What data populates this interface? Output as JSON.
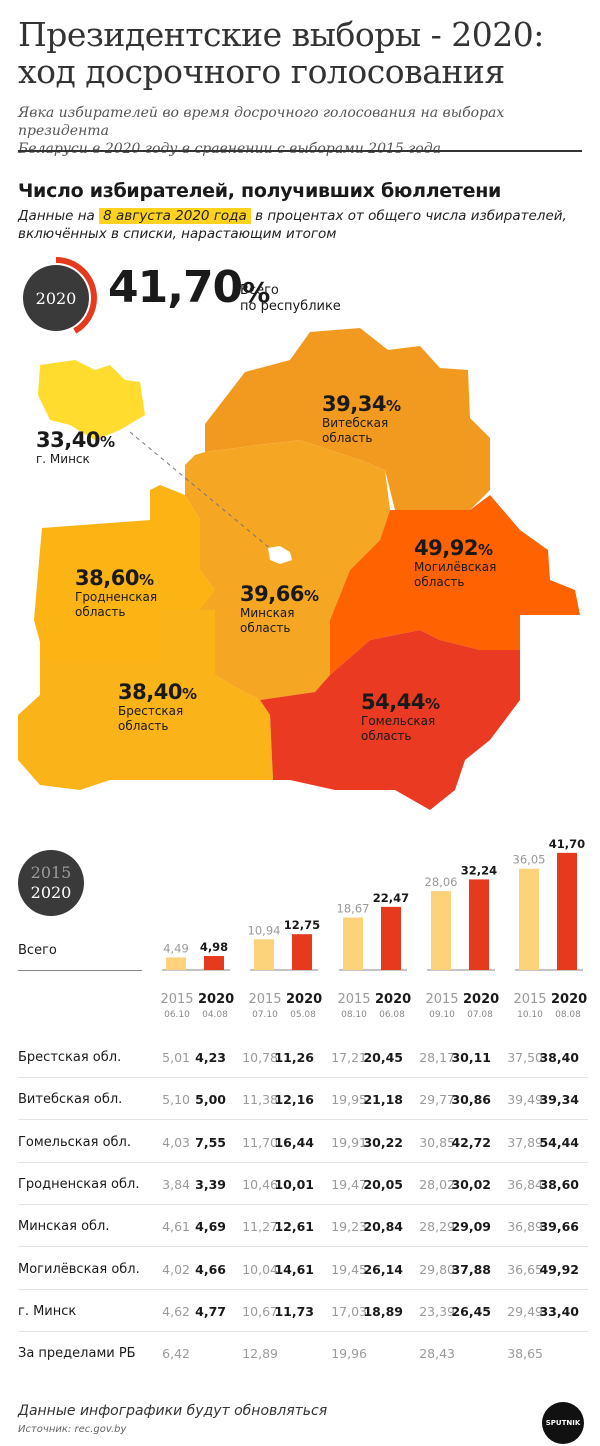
{
  "header": {
    "title_line1": "Президентские выборы - 2020:",
    "title_line2": "ход досрочного голосования",
    "subtitle_line1": "Явка избирателей во время досрочного голосования на выборах президента",
    "subtitle_line2": "Беларуси в 2020 году в сравнении с выборами 2015 года"
  },
  "section": {
    "title": "Число избирателей, получивших бюллетени",
    "desc_pre": "Данные на",
    "desc_highlight": "8 августа 2020 года",
    "desc_post": "в процентах от общего числа избирателей,",
    "desc_line2": "включённых в списки, нарастающим итогом"
  },
  "total": {
    "year": "2020",
    "value": "41,70",
    "percent_sign": "%",
    "label_line1": "Всего",
    "label_line2": "по республике",
    "ring_fraction": 0.417
  },
  "map": {
    "regions": [
      {
        "value": "39,34",
        "name_line1": "Витебская",
        "name_line2": "область",
        "color": "#f29a1f"
      },
      {
        "value": "49,92",
        "name_line1": "Могилёвская",
        "name_line2": "область",
        "color": "#ff6200"
      },
      {
        "value": "39,66",
        "name_line1": "Минская",
        "name_line2": "область",
        "color": "#f5a623"
      },
      {
        "value": "38,60",
        "name_line1": "Гродненская",
        "name_line2": "область",
        "color": "#fbb414"
      },
      {
        "value": "38,40",
        "name_line1": "Брестская",
        "name_line2": "область",
        "color": "#fab318"
      },
      {
        "value": "54,44",
        "name_line1": "Гомельская",
        "name_line2": "область",
        "color": "#ea3a22"
      },
      {
        "value": "33,40",
        "name_line1": "г. Минск",
        "name_line2": "",
        "color": "#ffdc2e"
      }
    ],
    "percent_sign": "%"
  },
  "legend": {
    "year_2015": "2015",
    "year_2020": "2020"
  },
  "colors": {
    "color_2015": "#fcd27b",
    "color_2020": "#e63a1e",
    "accent": "#ffd21f"
  },
  "chart_data": {
    "type": "bar",
    "row_label": "Всего",
    "series": [
      {
        "name": "2015",
        "dates": [
          "06.10",
          "07.10",
          "08.10",
          "09.10",
          "10.10"
        ],
        "values": [
          4.49,
          10.94,
          18.67,
          28.06,
          36.05
        ],
        "labels": [
          "4,49",
          "10,94",
          "18,67",
          "28,06",
          "36,05"
        ]
      },
      {
        "name": "2020",
        "dates": [
          "04.08",
          "05.08",
          "06.08",
          "07.08",
          "08.08"
        ],
        "values": [
          4.98,
          12.75,
          22.47,
          32.24,
          41.7
        ],
        "labels": [
          "4,98",
          "12,75",
          "22,47",
          "32,24",
          "41,70"
        ]
      }
    ],
    "ylim": [
      0,
      42
    ]
  },
  "table": {
    "rows": [
      {
        "label": "Брестская обл.",
        "cells": [
          [
            "5,01",
            "4,23"
          ],
          [
            "10,78",
            "11,26"
          ],
          [
            "17,21",
            "20,45"
          ],
          [
            "28,17",
            "30,11"
          ],
          [
            "37,50",
            "38,40"
          ]
        ]
      },
      {
        "label": "Витебская обл.",
        "cells": [
          [
            "5,10",
            "5,00"
          ],
          [
            "11,38",
            "12,16"
          ],
          [
            "19,95",
            "21,18"
          ],
          [
            "29,77",
            "30,86"
          ],
          [
            "39,49",
            "39,34"
          ]
        ]
      },
      {
        "label": "Гомельская обл.",
        "cells": [
          [
            "4,03",
            "7,55"
          ],
          [
            "11,70",
            "16,44"
          ],
          [
            "19,91",
            "30,22"
          ],
          [
            "30,85",
            "42,72"
          ],
          [
            "37,89",
            "54,44"
          ]
        ]
      },
      {
        "label": "Гродненская обл.",
        "cells": [
          [
            "3,84",
            "3,39"
          ],
          [
            "10,46",
            "10,01"
          ],
          [
            "19,47",
            "20,05"
          ],
          [
            "28,02",
            "30,02"
          ],
          [
            "36,84",
            "38,60"
          ]
        ]
      },
      {
        "label": "Минская обл.",
        "cells": [
          [
            "4,61",
            "4,69"
          ],
          [
            "11,27",
            "12,61"
          ],
          [
            "19,23",
            "20,84"
          ],
          [
            "28,29",
            "29,09"
          ],
          [
            "36,89",
            "39,66"
          ]
        ]
      },
      {
        "label": "Могилёвская обл.",
        "cells": [
          [
            "4,02",
            "4,66"
          ],
          [
            "10,04",
            "14,61"
          ],
          [
            "19,45",
            "26,14"
          ],
          [
            "29,80",
            "37,88"
          ],
          [
            "36,65",
            "49,92"
          ]
        ]
      },
      {
        "label": "г. Минск",
        "cells": [
          [
            "4,62",
            "4,77"
          ],
          [
            "10,67",
            "11,73"
          ],
          [
            "17,03",
            "18,89"
          ],
          [
            "23,39",
            "26,45"
          ],
          [
            "29,49",
            "33,40"
          ]
        ]
      },
      {
        "label": "За пределами РБ",
        "cells": [
          [
            "6,42",
            ""
          ],
          [
            "12,89",
            ""
          ],
          [
            "19,96",
            ""
          ],
          [
            "28,43",
            ""
          ],
          [
            "38,65",
            ""
          ]
        ]
      }
    ]
  },
  "footer": {
    "note": "Данные инфографики будут обновляться",
    "source": "Источник: rec.gov.by",
    "logo_text": "SPUTNIK"
  }
}
